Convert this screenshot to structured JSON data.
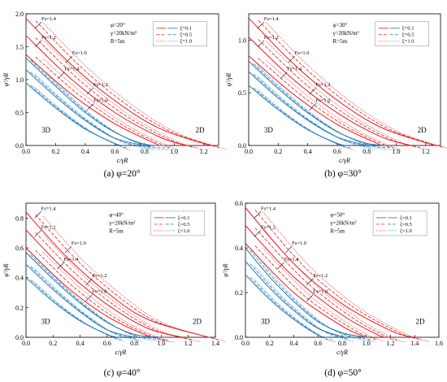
{
  "colors": {
    "xi_0_1": "#1f77b4",
    "xi_0_5": "#d62728",
    "xi_1_0": "#d62728",
    "red": "#e31a1c",
    "blue": "#1f77b4",
    "gray": "#999999"
  },
  "chart_data": [
    {
      "id": "a",
      "type": "line",
      "caption": "(a) φ=20°",
      "xlabel": "c/γR",
      "ylabel": "φ'/γR",
      "xlim": [
        0,
        1.3
      ],
      "ylim": [
        0,
        2.0
      ],
      "xticks": [
        "0.0",
        "0.2",
        "0.4",
        "0.6",
        "0.8",
        "1.0",
        "1.2"
      ],
      "yticks": [
        "0.0",
        "0.5",
        "1.0",
        "1.5",
        "2.0"
      ],
      "param_box": [
        "φ=20°",
        "γ=20kN/m³",
        "R=5m"
      ],
      "legend": [
        "ξ=0.1",
        "ξ=0.5",
        "ξ=1.0"
      ],
      "label_3d": "3D",
      "label_2d": "2D",
      "series": [
        {
          "name": "Fs=1.4",
          "dim": "2D",
          "x": [
            0,
            0.3,
            0.6,
            0.9,
            1.24
          ],
          "y": [
            1.93,
            1.24,
            0.68,
            0.26,
            0
          ]
        },
        {
          "name": "Fs=1.2",
          "dim": "2D",
          "x": [
            0,
            0.3,
            0.6,
            0.9,
            1.08
          ],
          "y": [
            1.67,
            1.02,
            0.5,
            0.13,
            0
          ]
        },
        {
          "name": "Fs=1.0",
          "dim": "2D",
          "x": [
            0,
            0.3,
            0.6,
            0.9
          ],
          "y": [
            1.38,
            0.79,
            0.33,
            0
          ]
        },
        {
          "name": "Fs=1.4",
          "dim": "3D",
          "x": [
            0,
            0.2,
            0.4,
            0.6,
            0.8,
            0.95
          ],
          "y": [
            1.33,
            0.9,
            0.5,
            0.2,
            0.02,
            0
          ]
        },
        {
          "name": "Fs=1.2",
          "dim": "3D",
          "x": [
            0,
            0.2,
            0.4,
            0.6,
            0.8
          ],
          "y": [
            1.15,
            0.74,
            0.38,
            0.11,
            0
          ]
        },
        {
          "name": "Fs=1.0",
          "dim": "3D",
          "x": [
            0,
            0.2,
            0.4,
            0.6,
            0.65
          ],
          "y": [
            0.95,
            0.57,
            0.25,
            0.03,
            0
          ]
        }
      ],
      "fs_labels": [
        "Fs=1.4",
        "Fs=1.2",
        "Fs=1.0",
        "Fs=1.4",
        "Fs=1.2",
        "Fs=1.0"
      ]
    },
    {
      "id": "b",
      "type": "line",
      "caption": "(b) φ=30°",
      "xlabel": "c/γR",
      "ylabel": "φ'/γR",
      "xlim": [
        0,
        1.3
      ],
      "ylim": [
        0,
        1.25
      ],
      "xticks": [
        "0.0",
        "0.2",
        "0.4",
        "0.6",
        "0.8",
        "1.0",
        "1.2"
      ],
      "yticks": [
        "0.0",
        "0.5",
        "1.0"
      ],
      "param_box": [
        "φ=30°",
        "γ=20kN/m³",
        "R=5m"
      ],
      "legend": [
        "ξ=0.1",
        "ξ=0.5",
        "ξ=1.0"
      ],
      "label_3d": "3D",
      "label_2d": "2D",
      "series": [
        {
          "name": "Fs=1.4",
          "dim": "2D",
          "x": [
            0,
            0.3,
            0.6,
            0.9,
            1.26
          ],
          "y": [
            1.21,
            0.78,
            0.43,
            0.17,
            0
          ]
        },
        {
          "name": "Fs=1.2",
          "dim": "2D",
          "x": [
            0,
            0.3,
            0.6,
            0.9,
            1.1
          ],
          "y": [
            1.03,
            0.63,
            0.31,
            0.08,
            0
          ]
        },
        {
          "name": "Fs=1.0",
          "dim": "2D",
          "x": [
            0,
            0.3,
            0.6,
            0.9
          ],
          "y": [
            0.85,
            0.49,
            0.2,
            0
          ]
        },
        {
          "name": "Fs=1.4",
          "dim": "3D",
          "x": [
            0,
            0.2,
            0.4,
            0.6,
            0.8,
            0.95
          ],
          "y": [
            0.8,
            0.54,
            0.31,
            0.13,
            0.02,
            0
          ]
        },
        {
          "name": "Fs=1.2",
          "dim": "3D",
          "x": [
            0,
            0.2,
            0.4,
            0.6,
            0.8
          ],
          "y": [
            0.7,
            0.45,
            0.24,
            0.08,
            0
          ]
        },
        {
          "name": "Fs=1.0",
          "dim": "3D",
          "x": [
            0,
            0.2,
            0.4,
            0.6,
            0.66
          ],
          "y": [
            0.57,
            0.34,
            0.15,
            0.02,
            0
          ]
        }
      ],
      "fs_labels": [
        "Fs=1.4",
        "Fs=1.2",
        "Fs=1.0",
        "Fs=1.4",
        "Fs=1.2",
        "Fs=1.0"
      ]
    },
    {
      "id": "c",
      "type": "line",
      "caption": "(c) φ=40°",
      "xlabel": "c/γR",
      "ylabel": "φ'/γR",
      "xlim": [
        0,
        1.4
      ],
      "ylim": [
        0,
        0.9
      ],
      "xticks": [
        "0.0",
        "0.2",
        "0.4",
        "0.6",
        "0.8",
        "1.0",
        "1.2",
        "1.4"
      ],
      "yticks": [
        "0.0",
        "0.2",
        "0.4",
        "0.6",
        "0.8"
      ],
      "param_box": [
        "φ=40°",
        "γ=20kN/m³",
        "R=5m"
      ],
      "legend": [
        "ξ=0.1",
        "ξ=0.5",
        "ξ=1.0"
      ],
      "label_3d": "3D",
      "label_2d": "2D",
      "series": [
        {
          "name": "Fs=1.4",
          "dim": "2D",
          "x": [
            0,
            0.3,
            0.6,
            0.9,
            1.35
          ],
          "y": [
            0.84,
            0.54,
            0.3,
            0.12,
            0
          ]
        },
        {
          "name": "Fs=1.2",
          "dim": "2D",
          "x": [
            0,
            0.3,
            0.6,
            0.9,
            1.16
          ],
          "y": [
            0.72,
            0.44,
            0.22,
            0.06,
            0
          ]
        },
        {
          "name": "Fs=1.0",
          "dim": "2D",
          "x": [
            0,
            0.3,
            0.6,
            0.9,
            0.98
          ],
          "y": [
            0.6,
            0.34,
            0.14,
            0.01,
            0
          ]
        },
        {
          "name": "Fs=1.4",
          "dim": "3D",
          "x": [
            0,
            0.2,
            0.4,
            0.6,
            0.8,
            1.0
          ],
          "y": [
            0.57,
            0.39,
            0.23,
            0.1,
            0.02,
            0
          ]
        },
        {
          "name": "Fs=1.2",
          "dim": "3D",
          "x": [
            0,
            0.2,
            0.4,
            0.6,
            0.8
          ],
          "y": [
            0.49,
            0.32,
            0.17,
            0.05,
            0
          ]
        },
        {
          "name": "Fs=1.0",
          "dim": "3D",
          "x": [
            0,
            0.2,
            0.4,
            0.6,
            0.67
          ],
          "y": [
            0.4,
            0.24,
            0.11,
            0.02,
            0
          ]
        }
      ],
      "fs_labels": [
        "Fs=1.4",
        "Fs=1.2",
        "Fs=1.0",
        "Fs=1.4",
        "Fs=1.2",
        "Fs=1.0"
      ]
    },
    {
      "id": "d",
      "type": "line",
      "caption": "(d) φ=50°",
      "xlabel": "c/γR",
      "ylabel": "φ'/γR",
      "xlim": [
        0,
        1.6
      ],
      "ylim": [
        0,
        0.6
      ],
      "xticks": [
        "0.0",
        "0.2",
        "0.4",
        "0.6",
        "0.8",
        "1.0",
        "1.2",
        "1.4",
        "1.6"
      ],
      "yticks": [
        "0.0",
        "0.2",
        "0.4",
        "0.6"
      ],
      "param_box": [
        "φ=50°",
        "γ=20kN/m³",
        "R=5m"
      ],
      "legend": [
        "ξ=0.1",
        "ξ=0.5",
        "ξ=1.0"
      ],
      "label_3d": "3D",
      "label_2d": "2D",
      "series": [
        {
          "name": "Fs=1.4",
          "dim": "2D",
          "x": [
            0,
            0.4,
            0.8,
            1.2,
            1.38
          ],
          "y": [
            0.58,
            0.33,
            0.15,
            0.03,
            0
          ]
        },
        {
          "name": "Fs=1.2",
          "dim": "2D",
          "x": [
            0,
            0.4,
            0.8,
            1.1,
            1.19
          ],
          "y": [
            0.5,
            0.27,
            0.1,
            0.01,
            0
          ]
        },
        {
          "name": "Fs=1.0",
          "dim": "2D",
          "x": [
            0,
            0.4,
            0.8,
            1.0
          ],
          "y": [
            0.42,
            0.2,
            0.05,
            0
          ]
        },
        {
          "name": "Fs=1.4",
          "dim": "3D",
          "x": [
            0,
            0.2,
            0.4,
            0.6,
            0.8,
            1.0
          ],
          "y": [
            0.4,
            0.27,
            0.16,
            0.07,
            0.02,
            0
          ]
        },
        {
          "name": "Fs=1.2",
          "dim": "3D",
          "x": [
            0,
            0.2,
            0.4,
            0.6,
            0.82
          ],
          "y": [
            0.34,
            0.22,
            0.12,
            0.04,
            0
          ]
        },
        {
          "name": "Fs=1.0",
          "dim": "3D",
          "x": [
            0,
            0.2,
            0.4,
            0.6,
            0.68
          ],
          "y": [
            0.28,
            0.17,
            0.08,
            0.01,
            0
          ]
        }
      ],
      "fs_labels": [
        "Fs=1.4",
        "Fs=1.2",
        "Fs=1.0",
        "Fs=1.4",
        "Fs=1.2",
        "Fs=1.0"
      ]
    }
  ]
}
